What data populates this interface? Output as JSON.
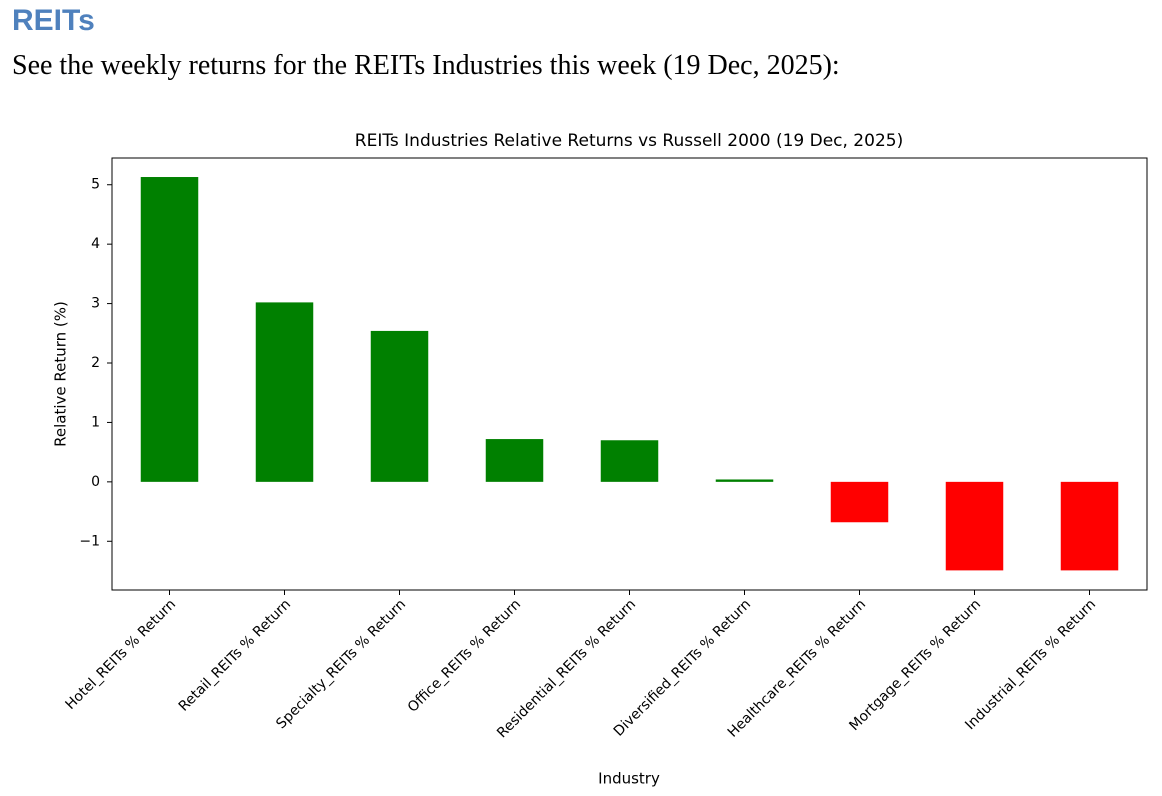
{
  "header": {
    "title": "REITs",
    "subtitle": "See the weekly returns for the REITs Industries this week (19 Dec, 2025):"
  },
  "chart_data": {
    "type": "bar",
    "title": "REITs Industries Relative Returns vs Russell 2000 (19 Dec, 2025)",
    "x_label": "Industry",
    "y_label": "Relative Return (%)",
    "categories": [
      "Hotel_REITs % Return",
      "Retail_REITs % Return",
      "Specialty_REITs % Return",
      "Office_REITs % Return",
      "Residential_REITs % Return",
      "Diversified_REITs % Return",
      "Healthcare_REITs % Return",
      "Mortgage_REITs % Return",
      "Industrial_REITs % Return"
    ],
    "values": [
      5.13,
      3.02,
      2.54,
      0.72,
      0.7,
      0.04,
      -0.68,
      -1.49,
      -1.49
    ],
    "colors": [
      "#008000",
      "#008000",
      "#008000",
      "#008000",
      "#008000",
      "#008000",
      "#ff0000",
      "#ff0000",
      "#ff0000"
    ],
    "ylim": [
      -1.82,
      5.45
    ],
    "yticks": [
      {
        "value": -1,
        "label": "−1"
      },
      0,
      1,
      2,
      3,
      4,
      5
    ],
    "grid": false
  }
}
